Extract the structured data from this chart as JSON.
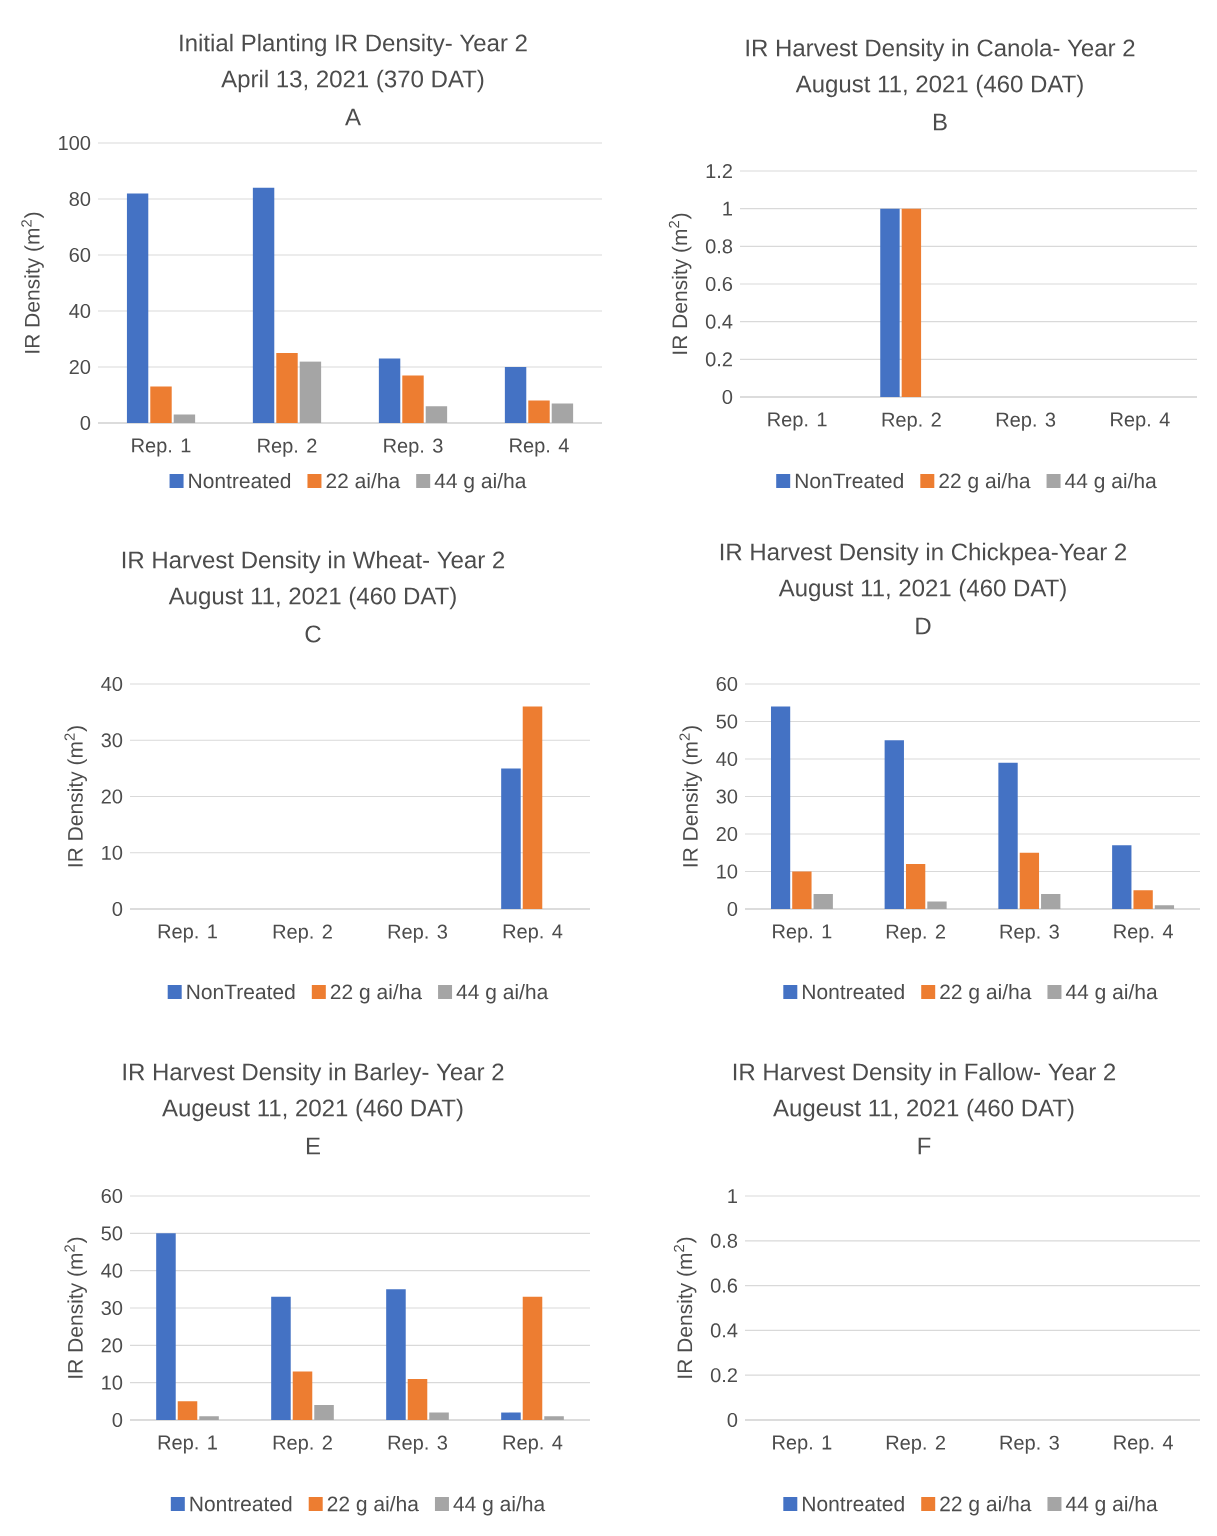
{
  "chart_data": [
    {
      "type": "bar",
      "title": "Initial Planting IR Density- Year 2",
      "subtitle": "April 13, 2021 (370 DAT)",
      "annotations": [
        "A"
      ],
      "ylabel": "IR Density (m$^{2}$)",
      "categories": [
        "Rep. 1",
        "Rep. 2",
        "Rep. 3",
        "Rep. 4"
      ],
      "series": [
        {
          "name": "Nontreated",
          "color": "#4472c4",
          "values": [
            82,
            84,
            23,
            20
          ]
        },
        {
          "name": "22  ai/ha",
          "color": "#ed7d31",
          "values": [
            13,
            25,
            17,
            8
          ]
        },
        {
          "name": "44 g ai/ha",
          "color": "#a5a5a5",
          "values": [
            3,
            22,
            6,
            7
          ]
        }
      ],
      "ylim": [
        0,
        100
      ],
      "yticks": [
        0,
        20,
        40,
        60,
        80,
        100
      ],
      "grid": "y",
      "legend": "bottom"
    },
    {
      "type": "bar",
      "title": "IR Harvest Density in Canola- Year 2",
      "subtitle": "August 11, 2021 (460 DAT)",
      "annotations": [
        "B"
      ],
      "ylabel": "IR Density (m$^{2}$)",
      "categories": [
        "Rep. 1",
        "Rep. 2",
        "Rep. 3",
        "Rep. 4"
      ],
      "series": [
        {
          "name": "NonTreated",
          "color": "#4472c4",
          "values": [
            0,
            1,
            0,
            0
          ]
        },
        {
          "name": "22 g ai/ha",
          "color": "#ed7d31",
          "values": [
            0,
            1,
            0,
            0
          ]
        },
        {
          "name": "44 g ai/ha",
          "color": "#a5a5a5",
          "values": [
            0,
            0,
            0,
            0
          ]
        }
      ],
      "ylim": [
        0,
        1.2
      ],
      "yticks": [
        0,
        0.2,
        0.4,
        0.6,
        0.8,
        1,
        1.2
      ],
      "grid": "y",
      "legend": "bottom"
    },
    {
      "type": "bar",
      "title": "IR Harvest Density in Wheat- Year 2",
      "subtitle": "August 11, 2021 (460 DAT)",
      "annotations": [
        "C"
      ],
      "ylabel": "IR Density (m$^{2}$)",
      "categories": [
        "Rep. 1",
        "Rep. 2",
        "Rep. 3",
        "Rep. 4"
      ],
      "series": [
        {
          "name": "NonTreated",
          "color": "#4472c4",
          "values": [
            0,
            0,
            0,
            25
          ]
        },
        {
          "name": "22 g ai/ha",
          "color": "#ed7d31",
          "values": [
            0,
            0,
            0,
            36
          ]
        },
        {
          "name": "44 g ai/ha",
          "color": "#a5a5a5",
          "values": [
            0,
            0,
            0,
            0
          ]
        }
      ],
      "ylim": [
        0,
        40
      ],
      "yticks": [
        0,
        10,
        20,
        30,
        40
      ],
      "grid": "y",
      "legend": "bottom"
    },
    {
      "type": "bar",
      "title": "IR Harvest Density in Chickpea-Year 2",
      "subtitle": "August 11, 2021 (460 DAT)",
      "annotations": [
        "D"
      ],
      "ylabel": "IR Density (m$^{2}$)",
      "categories": [
        "Rep. 1",
        "Rep. 2",
        "Rep. 3",
        "Rep. 4"
      ],
      "series": [
        {
          "name": "Nontreated",
          "color": "#4472c4",
          "values": [
            54,
            45,
            39,
            17
          ]
        },
        {
          "name": "22 g ai/ha",
          "color": "#ed7d31",
          "values": [
            10,
            12,
            15,
            5
          ]
        },
        {
          "name": "44 g ai/ha",
          "color": "#a5a5a5",
          "values": [
            4,
            2,
            4,
            1
          ]
        }
      ],
      "ylim": [
        0,
        60
      ],
      "yticks": [
        0,
        10,
        20,
        30,
        40,
        50,
        60
      ],
      "grid": "y",
      "legend": "bottom"
    },
    {
      "type": "bar",
      "title": "IR Harvest Density in Barley- Year 2",
      "subtitle": "Augeust 11, 2021 (460 DAT)",
      "annotations": [
        "E"
      ],
      "ylabel": "IR Density (m$^{2}$)",
      "categories": [
        "Rep. 1",
        "Rep. 2",
        "Rep. 3",
        "Rep. 4"
      ],
      "series": [
        {
          "name": "Nontreated",
          "color": "#4472c4",
          "values": [
            50,
            33,
            35,
            2
          ]
        },
        {
          "name": "22 g ai/ha",
          "color": "#ed7d31",
          "values": [
            5,
            13,
            11,
            33
          ]
        },
        {
          "name": "44 g ai/ha",
          "color": "#a5a5a5",
          "values": [
            1,
            4,
            2,
            1
          ]
        }
      ],
      "ylim": [
        0,
        60
      ],
      "yticks": [
        0,
        10,
        20,
        30,
        40,
        50,
        60
      ],
      "grid": "y",
      "legend": "bottom"
    },
    {
      "type": "bar",
      "title": "IR Harvest Density in Fallow- Year 2",
      "subtitle": "Augeust 11, 2021 (460 DAT)",
      "annotations": [
        "F"
      ],
      "ylabel": "IR Density (m$^{2}$)",
      "categories": [
        "Rep. 1",
        "Rep. 2",
        "Rep. 3",
        "Rep. 4"
      ],
      "series": [
        {
          "name": "Nontreated",
          "color": "#4472c4",
          "values": [
            0,
            0,
            0,
            0
          ]
        },
        {
          "name": "22 g ai/ha",
          "color": "#ed7d31",
          "values": [
            0,
            0,
            0,
            0
          ]
        },
        {
          "name": "44 g ai/ha",
          "color": "#a5a5a5",
          "values": [
            0,
            0,
            0,
            0
          ]
        }
      ],
      "ylim": [
        0,
        1
      ],
      "yticks": [
        0,
        0.2,
        0.4,
        0.6,
        0.8,
        1
      ],
      "grid": "y",
      "legend": "bottom"
    }
  ]
}
